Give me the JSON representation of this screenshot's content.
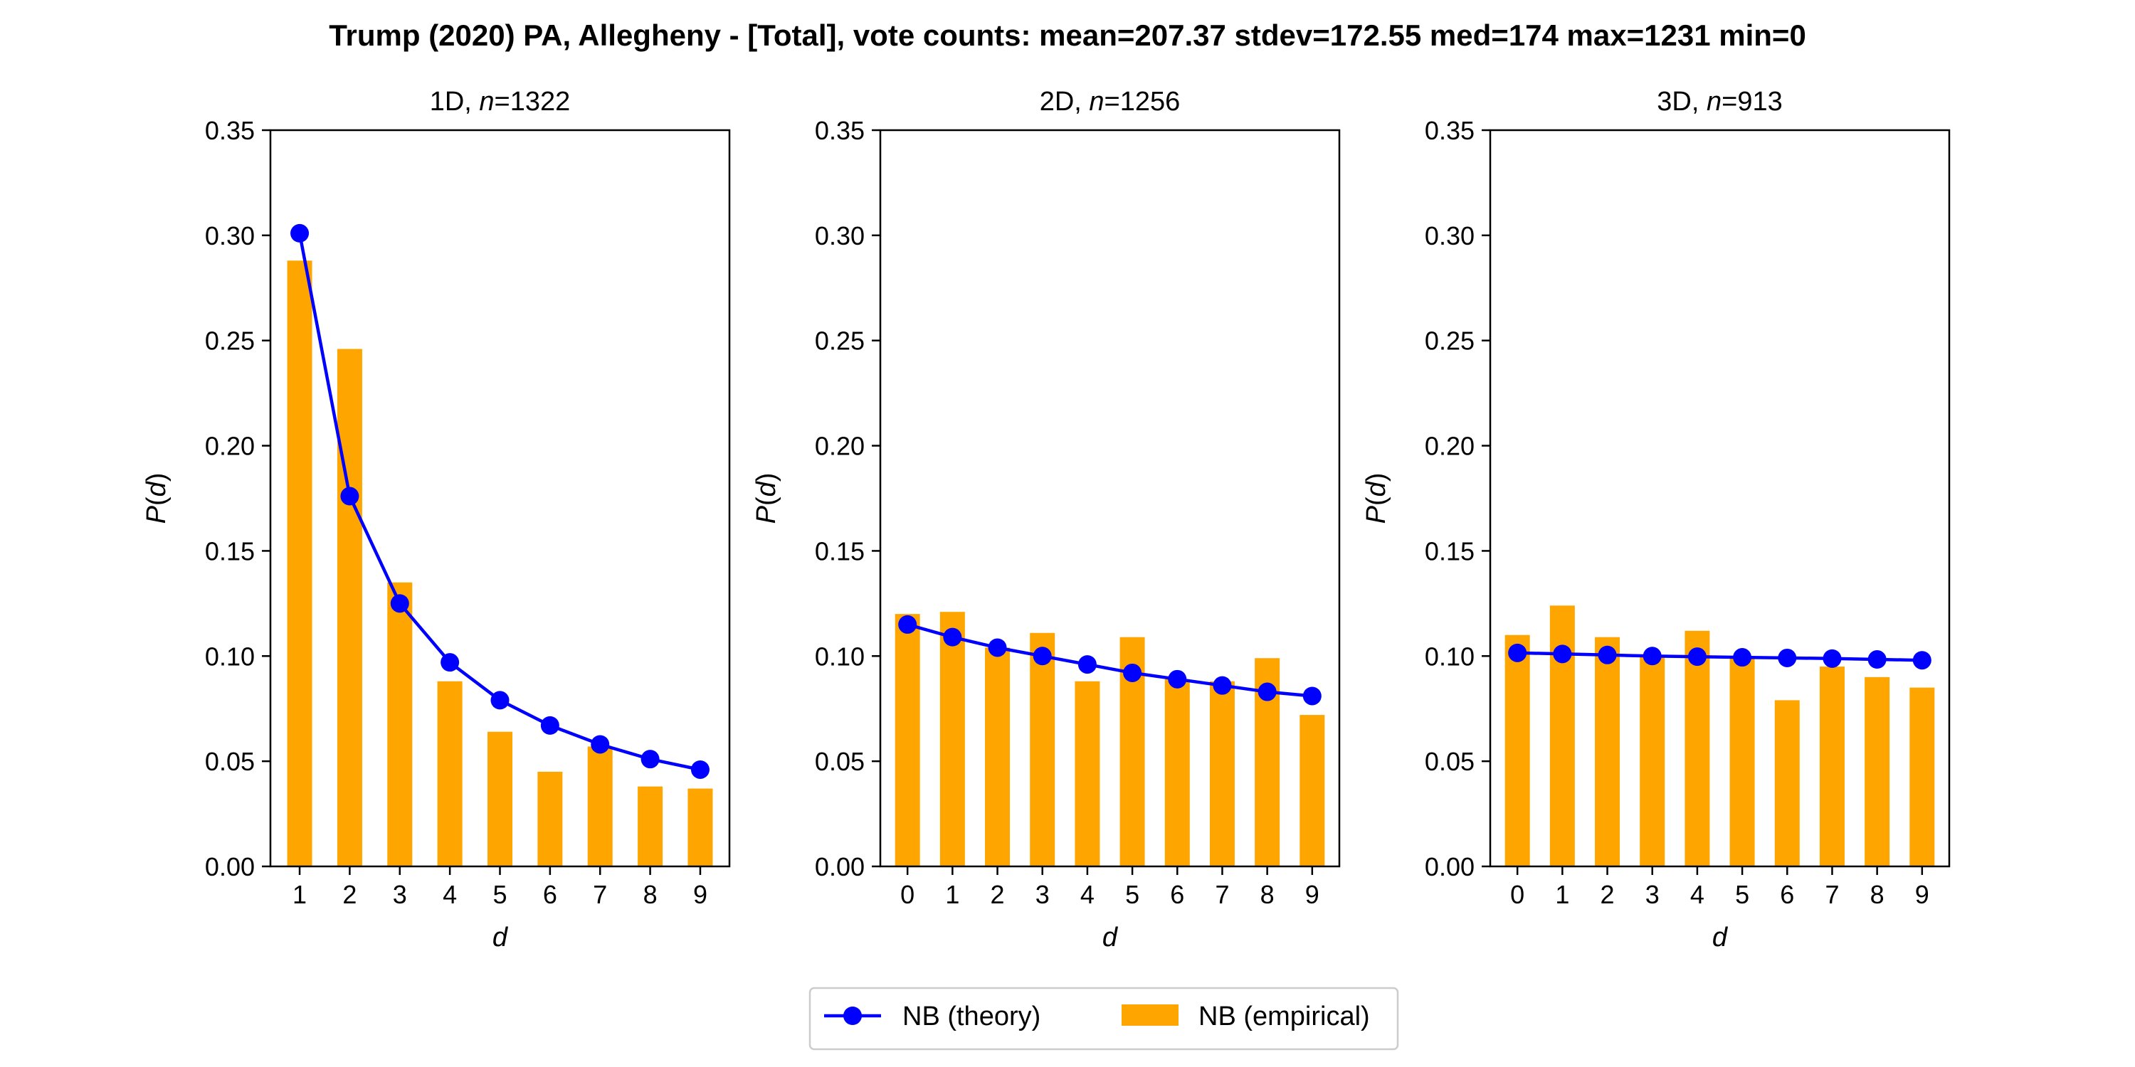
{
  "figure": {
    "suptitle": "Trump (2020) PA, Allegheny - [Total], vote counts: mean=207.37 stdev=172.55 med=174 max=1231 min=0"
  },
  "legend": {
    "placement": "bottom-center",
    "entries": [
      {
        "label": "NB (theory)",
        "kind": "line-marker",
        "color": "#0000ff"
      },
      {
        "label": "NB (empirical)",
        "kind": "bar",
        "color": "#ffa500"
      }
    ]
  },
  "chart_data": [
    {
      "type": "bar",
      "title_prefix": "1D, ",
      "title_n_symbol": "n",
      "title_n_value": "=1322",
      "xlabel": "d",
      "ylabel_symbol": "P",
      "ylabel_arg": "d",
      "ylim": [
        0,
        0.35
      ],
      "yticks": [
        0.0,
        0.05,
        0.1,
        0.15,
        0.2,
        0.25,
        0.3,
        0.35
      ],
      "ytick_labels": [
        "0.00",
        "0.05",
        "0.10",
        "0.15",
        "0.20",
        "0.25",
        "0.30",
        "0.35"
      ],
      "categories": [
        "1",
        "2",
        "3",
        "4",
        "5",
        "6",
        "7",
        "8",
        "9"
      ],
      "grid": false,
      "series": [
        {
          "name": "NB (theory)",
          "type": "line",
          "color": "#0000ff",
          "values": [
            0.301,
            0.176,
            0.125,
            0.097,
            0.079,
            0.067,
            0.058,
            0.051,
            0.046
          ]
        },
        {
          "name": "NB (empirical)",
          "type": "bar",
          "color": "#ffa500",
          "values": [
            0.288,
            0.246,
            0.135,
            0.088,
            0.064,
            0.045,
            0.057,
            0.038,
            0.037
          ]
        }
      ]
    },
    {
      "type": "bar",
      "title_prefix": "2D, ",
      "title_n_symbol": "n",
      "title_n_value": "=1256",
      "xlabel": "d",
      "ylabel_symbol": "P",
      "ylabel_arg": "d",
      "ylim": [
        0,
        0.35
      ],
      "yticks": [
        0.0,
        0.05,
        0.1,
        0.15,
        0.2,
        0.25,
        0.3,
        0.35
      ],
      "ytick_labels": [
        "0.00",
        "0.05",
        "0.10",
        "0.15",
        "0.20",
        "0.25",
        "0.30",
        "0.35"
      ],
      "categories": [
        "0",
        "1",
        "2",
        "3",
        "4",
        "5",
        "6",
        "7",
        "8",
        "9"
      ],
      "grid": false,
      "series": [
        {
          "name": "NB (theory)",
          "type": "line",
          "color": "#0000ff",
          "values": [
            0.115,
            0.109,
            0.104,
            0.1,
            0.096,
            0.092,
            0.089,
            0.086,
            0.083,
            0.081
          ]
        },
        {
          "name": "NB (empirical)",
          "type": "bar",
          "color": "#ffa500",
          "values": [
            0.12,
            0.121,
            0.104,
            0.111,
            0.088,
            0.109,
            0.089,
            0.088,
            0.099,
            0.072
          ]
        }
      ]
    },
    {
      "type": "bar",
      "title_prefix": "3D, ",
      "title_n_symbol": "n",
      "title_n_value": "=913",
      "xlabel": "d",
      "ylabel_symbol": "P",
      "ylabel_arg": "d",
      "ylim": [
        0,
        0.35
      ],
      "yticks": [
        0.0,
        0.05,
        0.1,
        0.15,
        0.2,
        0.25,
        0.3,
        0.35
      ],
      "ytick_labels": [
        "0.00",
        "0.05",
        "0.10",
        "0.15",
        "0.20",
        "0.25",
        "0.30",
        "0.35"
      ],
      "categories": [
        "0",
        "1",
        "2",
        "3",
        "4",
        "5",
        "6",
        "7",
        "8",
        "9"
      ],
      "grid": false,
      "series": [
        {
          "name": "NB (theory)",
          "type": "line",
          "color": "#0000ff",
          "values": [
            0.1015,
            0.101,
            0.1005,
            0.1,
            0.0997,
            0.0994,
            0.0991,
            0.0988,
            0.0984,
            0.098
          ]
        },
        {
          "name": "NB (empirical)",
          "type": "bar",
          "color": "#ffa500",
          "values": [
            0.11,
            0.124,
            0.109,
            0.1,
            0.112,
            0.1,
            0.079,
            0.095,
            0.09,
            0.085
          ]
        }
      ]
    }
  ]
}
